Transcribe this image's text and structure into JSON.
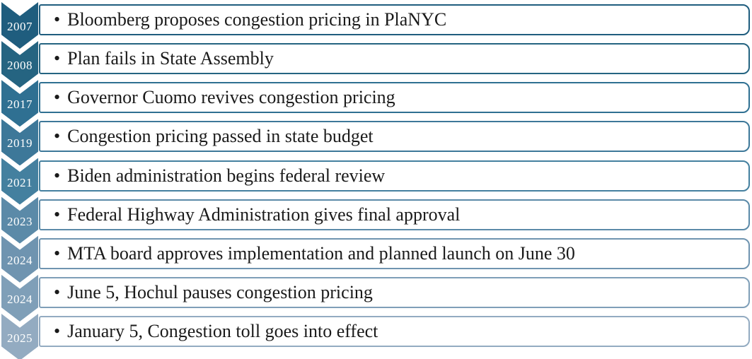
{
  "diagram": {
    "title_hint": "NYC congestion pricing timeline",
    "bullet_char": "•",
    "background_color": "#ffffff",
    "text_color": "#1a1a1a",
    "year_text_color": "#ffffff",
    "items": [
      {
        "year": "2007",
        "text": "Bloomberg proposes congestion pricing in PlaNYC",
        "color": "#1F5D7E"
      },
      {
        "year": "2008",
        "text": "Plan fails in State Assembly",
        "color": "#256481"
      },
      {
        "year": "2017",
        "text": "Governor Cuomo revives congestion pricing",
        "color": "#2F7092"
      },
      {
        "year": "2019",
        "text": "Congestion pricing passed in state budget",
        "color": "#3D7899"
      },
      {
        "year": "2021",
        "text": "Biden administration begins federal review",
        "color": "#44809F"
      },
      {
        "year": "2023",
        "text": "Federal Highway Administration gives final approval",
        "color": "#5B8AA8"
      },
      {
        "year": "2024",
        "text": "MTA board approves implementation and planned launch on June 30",
        "color": "#6F94B0"
      },
      {
        "year": "2024",
        "text": "June 5, Hochul pauses congestion pricing",
        "color": "#7F9FB8"
      },
      {
        "year": "2025",
        "text": "January 5, Congestion toll goes into effect",
        "color": "#93ABC1"
      }
    ]
  }
}
